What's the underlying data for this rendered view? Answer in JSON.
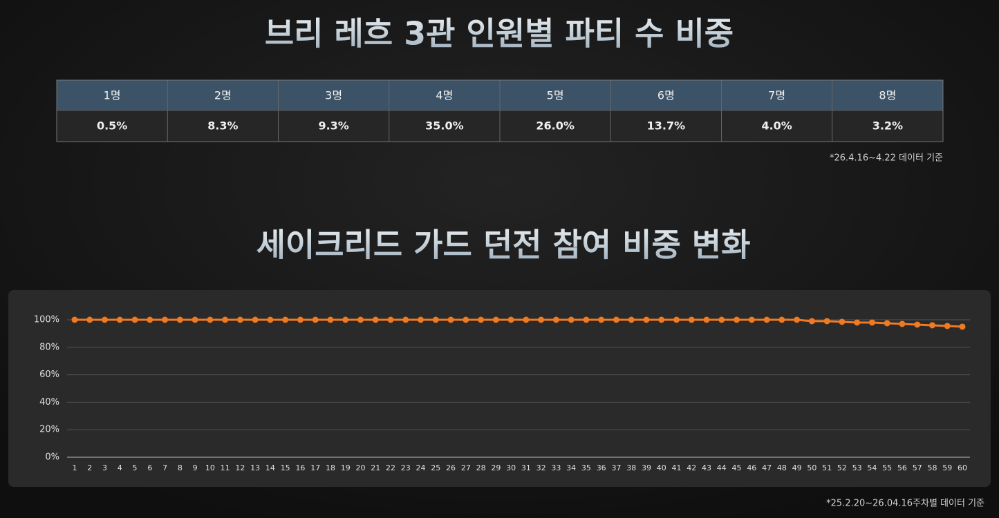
{
  "header": {
    "title": "브리 레흐 3관 인원별 파티 수 비중"
  },
  "table": {
    "headers": [
      "1명",
      "2명",
      "3명",
      "4명",
      "5명",
      "6명",
      "7명",
      "8명"
    ],
    "rows": [
      [
        "0.5%",
        "8.3%",
        "9.3%",
        "35.0%",
        "26.0%",
        "13.7%",
        "4.0%",
        "3.2%"
      ]
    ],
    "note": "*26.4.16~4.22 데이터 기준"
  },
  "chart_data": {
    "type": "line",
    "title": "세이크리드 가드 던전 참여 비중 변화",
    "categories": [
      1,
      2,
      3,
      4,
      5,
      6,
      7,
      8,
      9,
      10,
      11,
      12,
      13,
      14,
      15,
      16,
      17,
      18,
      19,
      20,
      21,
      22,
      23,
      24,
      25,
      26,
      27,
      28,
      29,
      30,
      31,
      32,
      33,
      34,
      35,
      36,
      37,
      38,
      39,
      40,
      41,
      42,
      43,
      44,
      45,
      46,
      47,
      48,
      49,
      50,
      51,
      52,
      53,
      54,
      55,
      56,
      57,
      58,
      59,
      60
    ],
    "values": [
      100,
      100,
      100,
      100,
      100,
      100,
      100,
      100,
      100,
      100,
      100,
      100,
      100,
      100,
      100,
      100,
      100,
      100,
      100,
      100,
      100,
      100,
      100,
      100,
      100,
      100,
      100,
      100,
      100,
      100,
      100,
      100,
      100,
      100,
      100,
      100,
      100,
      100,
      100,
      100,
      100,
      100,
      100,
      100,
      100,
      100,
      100,
      100,
      100,
      99,
      99,
      98.5,
      98,
      98,
      97.5,
      97,
      96.5,
      96,
      95.5,
      95
    ],
    "color": "#f07a22",
    "ylim": [
      0,
      100
    ],
    "yticks": [
      {
        "value": 0,
        "label": "0%"
      },
      {
        "value": 20,
        "label": "20%"
      },
      {
        "value": 40,
        "label": "40%"
      },
      {
        "value": 60,
        "label": "60%"
      },
      {
        "value": 80,
        "label": "80%"
      },
      {
        "value": 100,
        "label": "100%"
      }
    ],
    "grid": true,
    "note": "*25.2.20~26.04.16주차별 데이터 기준"
  }
}
